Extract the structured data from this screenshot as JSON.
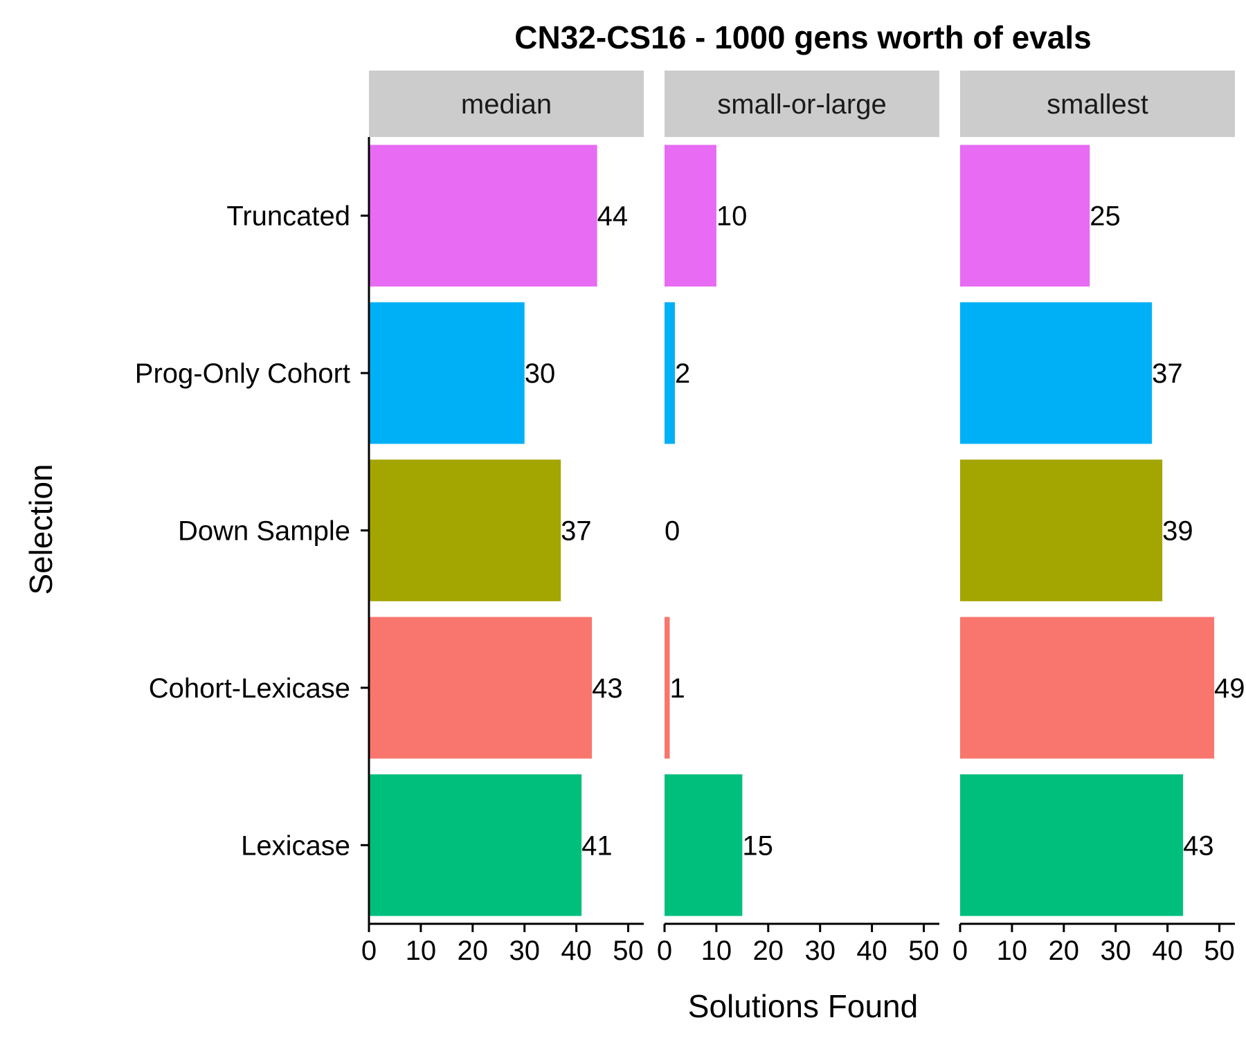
{
  "chart_data": {
    "type": "bar",
    "orientation": "horizontal",
    "title": "CN32-CS16  - 1000 gens worth of evals",
    "xlabel": "Solutions Found",
    "ylabel": "Selection",
    "xlim": [
      0,
      53
    ],
    "xticks": [
      0,
      10,
      20,
      30,
      40,
      50
    ],
    "grid": false,
    "legend": "none",
    "categories": [
      "Truncated",
      "Prog-Only Cohort",
      "Down Sample",
      "Cohort-Lexicase",
      "Lexicase"
    ],
    "colors": {
      "Truncated": "#E76BF3",
      "Prog-Only Cohort": "#00B0F6",
      "Down Sample": "#A3A500",
      "Cohort-Lexicase": "#F8766D",
      "Lexicase": "#00BF7D"
    },
    "facets": [
      {
        "name": "median",
        "values": [
          44,
          30,
          37,
          43,
          41
        ]
      },
      {
        "name": "small-or-large",
        "values": [
          10,
          2,
          0,
          1,
          15
        ]
      },
      {
        "name": "smallest",
        "values": [
          25,
          37,
          39,
          49,
          43
        ]
      }
    ]
  }
}
